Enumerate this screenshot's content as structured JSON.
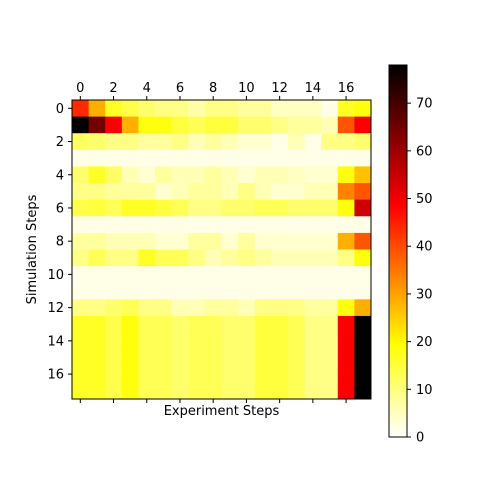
{
  "chart_data": {
    "type": "heatmap",
    "colormap": "hot_r",
    "xlabel": "Experiment Steps",
    "ylabel": "Simulation Steps",
    "x_ticks": [
      0,
      2,
      4,
      6,
      8,
      10,
      12,
      14,
      16
    ],
    "y_ticks": [
      0,
      2,
      4,
      6,
      8,
      10,
      12,
      14,
      16
    ],
    "colorbar_ticks": [
      0,
      10,
      20,
      30,
      40,
      50,
      60,
      70
    ],
    "vmin": 0,
    "vmax": 78,
    "x_range": [
      -0.5,
      17.5
    ],
    "y_range": [
      -0.5,
      17.5
    ],
    "values": [
      [
        45,
        30,
        18,
        15,
        12,
        10,
        10,
        7,
        10,
        10,
        8,
        8,
        5,
        5,
        5,
        2,
        18,
        20
      ],
      [
        78,
        65,
        50,
        30,
        20,
        20,
        16,
        14,
        16,
        16,
        12,
        12,
        10,
        8,
        8,
        6,
        40,
        50
      ],
      [
        13,
        12,
        10,
        10,
        8,
        8,
        10,
        6,
        8,
        6,
        4,
        4,
        2,
        6,
        2,
        10,
        10,
        12
      ],
      [
        2,
        2,
        2,
        2,
        2,
        2,
        2,
        2,
        2,
        2,
        2,
        2,
        2,
        2,
        2,
        2,
        2,
        2
      ],
      [
        12,
        18,
        13,
        6,
        4,
        8,
        6,
        6,
        8,
        6,
        4,
        6,
        6,
        5,
        4,
        4,
        20,
        28
      ],
      [
        10,
        10,
        8,
        8,
        8,
        4,
        6,
        8,
        8,
        6,
        10,
        6,
        4,
        4,
        6,
        6,
        35,
        40
      ],
      [
        15,
        16,
        14,
        18,
        18,
        16,
        14,
        10,
        10,
        12,
        12,
        14,
        14,
        12,
        12,
        12,
        20,
        55
      ],
      [
        2,
        2,
        2,
        2,
        2,
        2,
        2,
        2,
        2,
        2,
        2,
        2,
        2,
        2,
        2,
        2,
        2,
        2
      ],
      [
        8,
        8,
        6,
        6,
        6,
        4,
        4,
        8,
        8,
        4,
        8,
        4,
        4,
        4,
        4,
        4,
        30,
        40
      ],
      [
        10,
        14,
        10,
        10,
        18,
        14,
        14,
        10,
        6,
        8,
        10,
        8,
        6,
        6,
        6,
        6,
        10,
        20
      ],
      [
        2,
        2,
        2,
        2,
        2,
        2,
        2,
        2,
        2,
        2,
        2,
        2,
        2,
        2,
        2,
        2,
        2,
        2
      ],
      [
        2,
        2,
        2,
        2,
        2,
        2,
        2,
        2,
        2,
        2,
        2,
        2,
        2,
        2,
        2,
        2,
        2,
        2
      ],
      [
        10,
        10,
        12,
        14,
        10,
        10,
        6,
        6,
        8,
        8,
        6,
        10,
        10,
        10,
        8,
        8,
        20,
        30
      ],
      [
        18,
        18,
        15,
        20,
        14,
        14,
        12,
        14,
        14,
        12,
        12,
        16,
        16,
        14,
        10,
        10,
        50,
        78
      ],
      [
        18,
        18,
        15,
        20,
        14,
        14,
        12,
        14,
        14,
        12,
        12,
        16,
        16,
        14,
        10,
        10,
        50,
        78
      ],
      [
        18,
        18,
        15,
        20,
        14,
        14,
        12,
        14,
        14,
        12,
        12,
        16,
        16,
        14,
        10,
        10,
        50,
        78
      ],
      [
        18,
        18,
        15,
        20,
        14,
        14,
        12,
        14,
        14,
        12,
        12,
        16,
        16,
        14,
        10,
        10,
        50,
        78
      ],
      [
        18,
        18,
        15,
        20,
        14,
        14,
        12,
        14,
        14,
        12,
        12,
        16,
        16,
        14,
        10,
        10,
        50,
        78
      ]
    ]
  }
}
